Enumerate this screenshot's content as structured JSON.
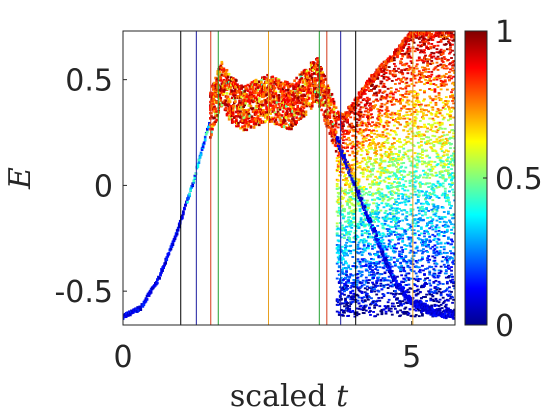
{
  "chart_data": {
    "type": "scatter",
    "title": "",
    "xlabel": {
      "word": "scaled",
      "symbol": "t"
    },
    "ylabel": "E",
    "xlim": [
      0,
      5.75
    ],
    "ylim": [
      -0.66,
      0.73
    ],
    "xticks": [
      0,
      5
    ],
    "xtick_labels": [
      "0",
      "5"
    ],
    "yticks": [
      -0.5,
      0,
      0.5
    ],
    "ytick_labels": [
      "-0.5",
      "0",
      "0.5"
    ],
    "grid": false,
    "colorbar": {
      "colormap": "jet",
      "range": [
        0,
        1
      ],
      "ticks": [
        0,
        0.5,
        1
      ],
      "tick_labels": [
        "0",
        "0.5",
        "1"
      ]
    },
    "vertical_lines": [
      {
        "x": 1.0,
        "color": "#000000"
      },
      {
        "x": 1.27,
        "color": "#1a1aa0"
      },
      {
        "x": 1.52,
        "color": "#d43a1a"
      },
      {
        "x": 1.65,
        "color": "#22a030"
      },
      {
        "x": 2.52,
        "color": "#e8a020"
      },
      {
        "x": 3.4,
        "color": "#22a030"
      },
      {
        "x": 3.53,
        "color": "#d43a1a"
      },
      {
        "x": 3.77,
        "color": "#1a1aa0"
      },
      {
        "x": 4.03,
        "color": "#000000"
      },
      {
        "x": 5.02,
        "color": "#e8a020"
      }
    ],
    "bundle": {
      "ground_curve": [
        [
          0,
          -0.62
        ],
        [
          0.3,
          -0.58
        ],
        [
          0.6,
          -0.45
        ],
        [
          0.9,
          -0.25
        ],
        [
          1.2,
          0.0
        ],
        [
          1.45,
          0.25
        ],
        [
          1.7,
          0.45
        ],
        [
          1.85,
          0.38
        ],
        [
          2.1,
          0.33
        ],
        [
          2.5,
          0.38
        ],
        [
          2.9,
          0.34
        ],
        [
          3.2,
          0.42
        ],
        [
          3.35,
          0.47
        ],
        [
          3.55,
          0.34
        ],
        [
          3.8,
          0.15
        ],
        [
          4.1,
          -0.05
        ],
        [
          4.4,
          -0.25
        ],
        [
          4.7,
          -0.45
        ],
        [
          5.0,
          -0.55
        ],
        [
          5.4,
          -0.6
        ],
        [
          5.75,
          -0.61
        ]
      ],
      "upper_branch": [
        [
          3.85,
          0.33
        ],
        [
          4.3,
          0.5
        ],
        [
          4.8,
          0.65
        ],
        [
          5.0,
          0.72
        ],
        [
          5.75,
          0.72
        ]
      ],
      "lower_branch_end": -0.62,
      "spread_start_x": 1.5,
      "fan_start_x": 3.7
    }
  }
}
